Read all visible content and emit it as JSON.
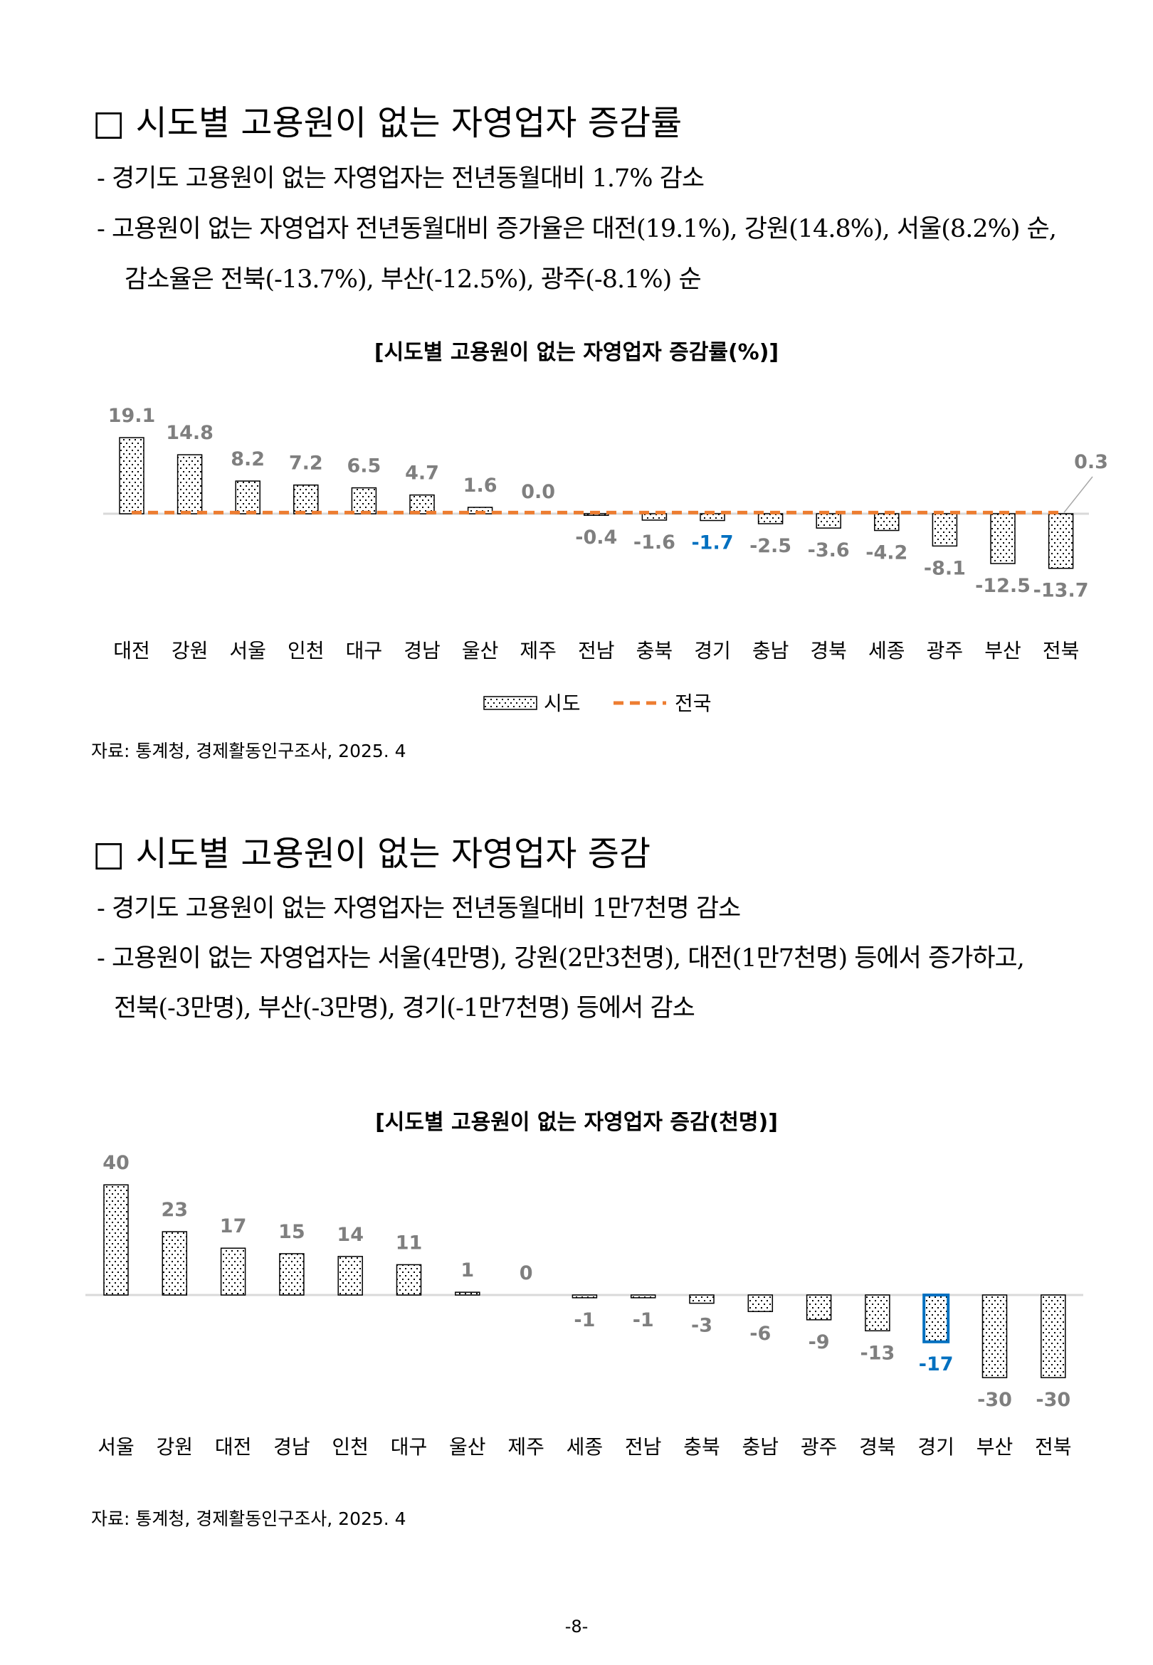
{
  "section1": {
    "heading": "□ 시도별 고용원이 없는 자영업자 증감률",
    "bullets": [
      "- 경기도 고용원이 없는 자영업자는 전년동월대비 1.7% 감소",
      "- 고용원이 없는 자영업자 전년동월대비 증가율은 대전(19.1%), 강원(14.8%),  서울(8.2%) 순,",
      "감소율은 전북(-13.7%), 부산(-12.5%), 광주(-8.1%) 순"
    ],
    "source": "자료: 통계청, 경제활동인구조사, 2025. 4"
  },
  "section2": {
    "heading": "□ 시도별 고용원이 없는 자영업자 증감",
    "bullets": [
      "- 경기도 고용원이 없는 자영업자는 전년동월대비 1만7천명 감소",
      "- 고용원이 없는 자영업자는 서울(4만명), 강원(2만3천명), 대전(1만7천명) 등에서 증가하고,",
      "전북(-3만명), 부산(-3만명), 경기(-1만7천명) 등에서 감소"
    ],
    "source": "자료: 통계청, 경제활동인구조사, 2025. 4"
  },
  "page_number": "-8-",
  "colors": {
    "label": "#7f7f7f",
    "highlight": "#0070c0",
    "national": "#ed7d31"
  },
  "chart_data": [
    {
      "type": "bar",
      "title": "[시도별 고용원이 없는 자영업자  증감률(%)]",
      "categories": [
        "대전",
        "강원",
        "서울",
        "인천",
        "대구",
        "경남",
        "울산",
        "제주",
        "전남",
        "충북",
        "경기",
        "충남",
        "경북",
        "세종",
        "광주",
        "부산",
        "전북"
      ],
      "values": [
        19.1,
        14.8,
        8.2,
        7.2,
        6.5,
        4.7,
        1.6,
        0.0,
        -0.4,
        -1.6,
        -1.7,
        -2.5,
        -3.6,
        -4.2,
        -8.1,
        -12.5,
        -13.7
      ],
      "labels": [
        "19.1",
        "14.8",
        "8.2",
        "7.2",
        "6.5",
        "4.7",
        "1.6",
        "0.0",
        "-0.4",
        "-1.6",
        "-1.7",
        "-2.5",
        "-3.6",
        "-4.2",
        "-8.1",
        "-12.5",
        "-13.7"
      ],
      "highlight": "경기",
      "national": {
        "name": "전국",
        "value": 0.3,
        "label": "0.3"
      },
      "legend": {
        "bar": "시도",
        "line": "전국",
        "placement": "bottom"
      }
    },
    {
      "type": "bar",
      "title": "[시도별 고용원이 없는 자영업자 증감(천명)]",
      "categories": [
        "서울",
        "강원",
        "대전",
        "경남",
        "인천",
        "대구",
        "울산",
        "제주",
        "세종",
        "전남",
        "충북",
        "충남",
        "광주",
        "경북",
        "경기",
        "부산",
        "전북"
      ],
      "values": [
        40,
        23,
        17,
        15,
        14,
        11,
        1,
        0,
        -1,
        -1,
        -3,
        -6,
        -9,
        -13,
        -17,
        -30,
        -30
      ],
      "labels": [
        "40",
        "23",
        "17",
        "15",
        "14",
        "11",
        "1",
        "0",
        "-1",
        "-1",
        "-3",
        "-6",
        "-9",
        "-13",
        "-17",
        "-30",
        "-30"
      ],
      "highlight": "경기"
    }
  ]
}
